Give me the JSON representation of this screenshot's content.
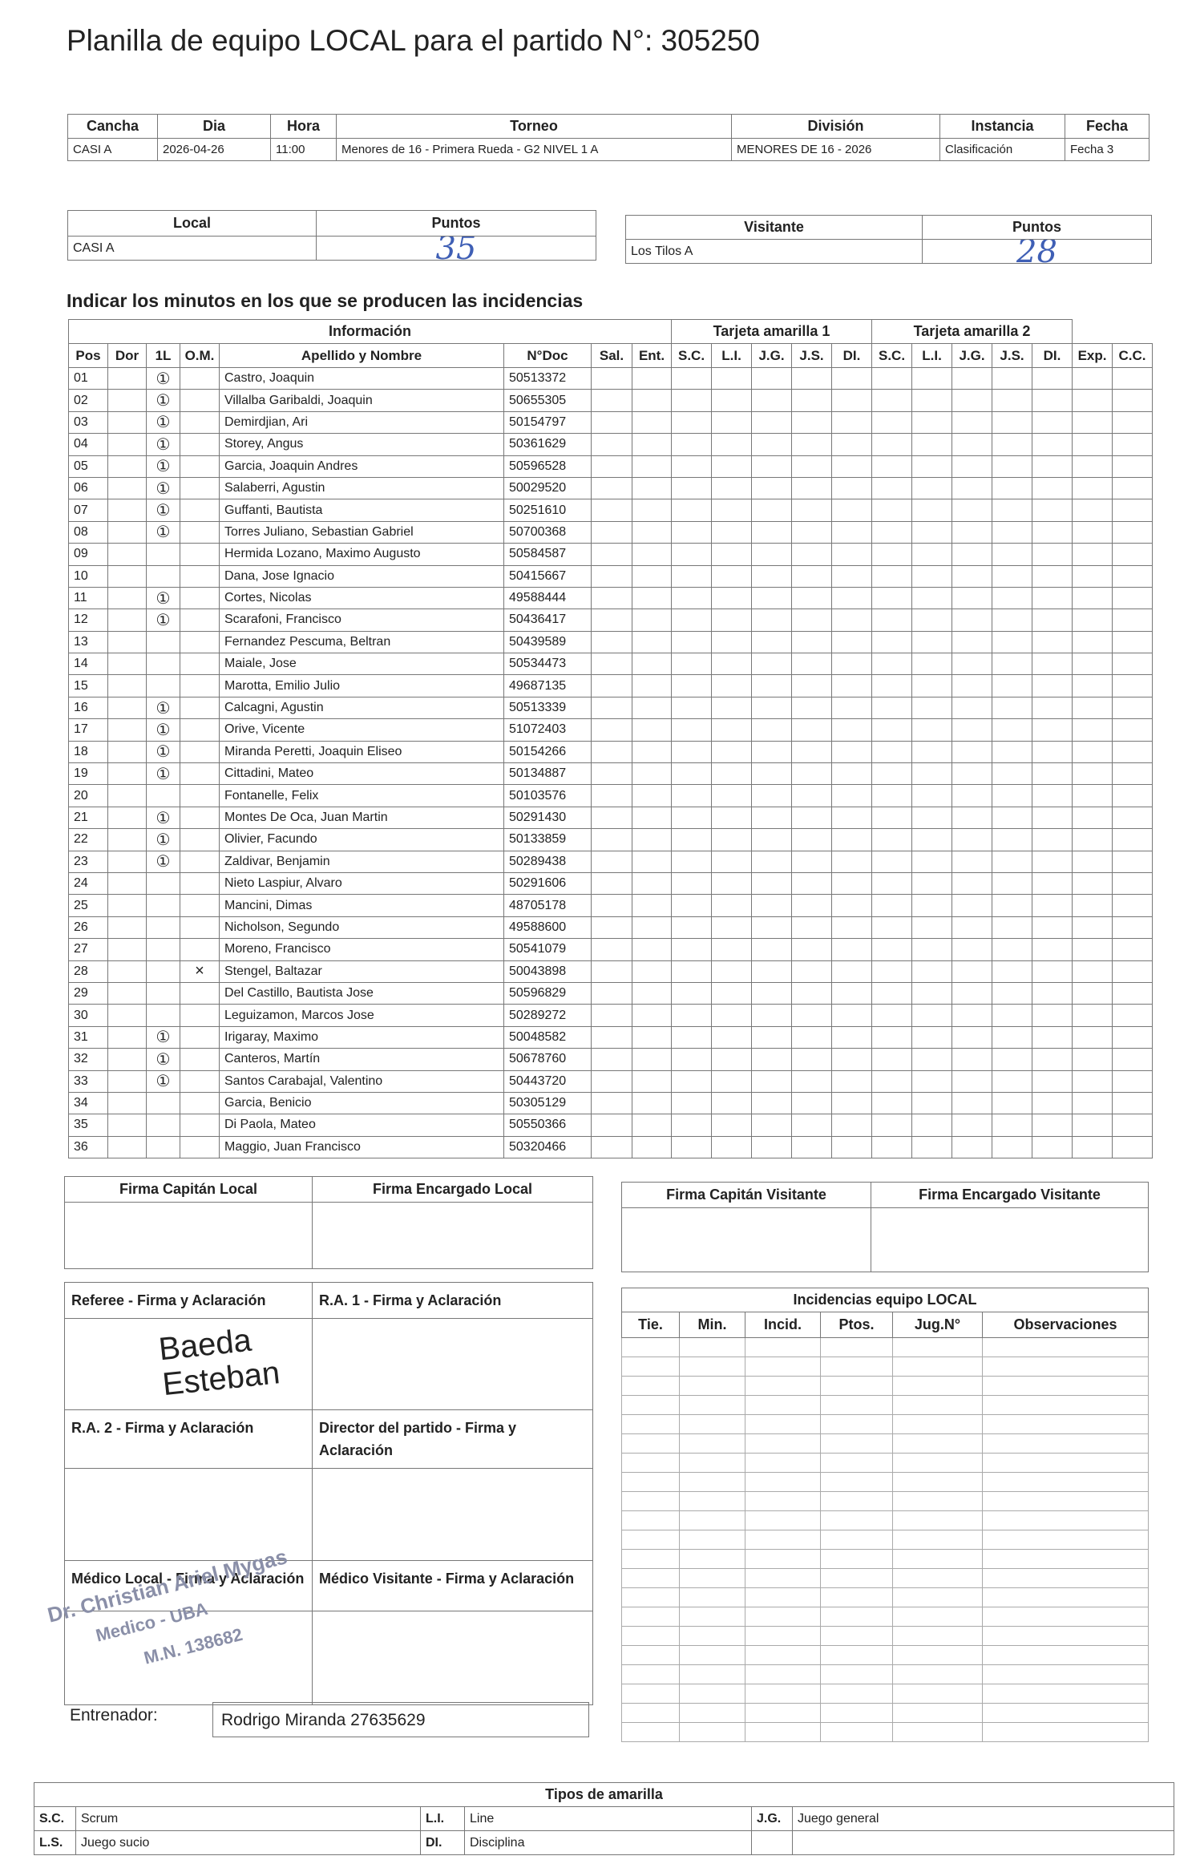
{
  "header": {
    "title": "Planilla de equipo LOCAL para el partido N°: 305250"
  },
  "match": {
    "columns": [
      "Cancha",
      "Dia",
      "Hora",
      "Torneo",
      "División",
      "Instancia",
      "Fecha"
    ],
    "values": [
      "CASI A",
      "2026-04-26",
      "11:00",
      "Menores de 16 - Primera Rueda - G2 NIVEL 1 A",
      "MENORES DE 16 - 2026",
      "Clasificación",
      "Fecha 3"
    ]
  },
  "score": {
    "local_label": "Local",
    "local_points_label": "Puntos",
    "local_team": "CASI A",
    "local_points": "35",
    "visitor_label": "Visitante",
    "visitor_points_label": "Puntos",
    "visitor_team": "Los Tilos A",
    "visitor_points": "28"
  },
  "players": {
    "heading": "Indicar los minutos en los que se producen las incidencias",
    "group_headers": [
      "Información",
      "Tarjeta amarilla 1",
      "Tarjeta amarilla 2"
    ],
    "columns": [
      "Pos",
      "Dor",
      "1L",
      "O.M.",
      "Apellido y Nombre",
      "N°Doc",
      "Sal.",
      "Ent.",
      "S.C.",
      "L.I.",
      "J.G.",
      "J.S.",
      "DI.",
      "S.C.",
      "L.I.",
      "J.G.",
      "J.S.",
      "DI.",
      "Exp.",
      "C.C."
    ],
    "rows": [
      [
        "01",
        null,
        "①",
        null,
        "Castro, Joaquin",
        "50513372"
      ],
      [
        "02",
        null,
        "①",
        null,
        "Villalba Garibaldi, Joaquin",
        "50655305"
      ],
      [
        "03",
        null,
        "①",
        null,
        "Demirdjian, Ari",
        "50154797"
      ],
      [
        "04",
        null,
        "①",
        null,
        "Storey, Angus",
        "50361629"
      ],
      [
        "05",
        null,
        "①",
        null,
        "Garcia, Joaquin Andres",
        "50596528"
      ],
      [
        "06",
        null,
        "①",
        null,
        "Salaberri, Agustin",
        "50029520"
      ],
      [
        "07",
        null,
        "①",
        null,
        "Guffanti, Bautista",
        "50251610"
      ],
      [
        "08",
        null,
        "①",
        null,
        "Torres Juliano, Sebastian Gabriel",
        "50700368"
      ],
      [
        "09",
        null,
        null,
        null,
        "Hermida Lozano, Maximo Augusto",
        "50584587"
      ],
      [
        "10",
        null,
        null,
        null,
        "Dana, Jose Ignacio",
        "50415667"
      ],
      [
        "11",
        null,
        "①",
        null,
        "Cortes, Nicolas",
        "49588444"
      ],
      [
        "12",
        null,
        "①",
        null,
        "Scarafoni, Francisco",
        "50436417"
      ],
      [
        "13",
        null,
        null,
        null,
        "Fernandez Pescuma, Beltran",
        "50439589"
      ],
      [
        "14",
        null,
        null,
        null,
        "Maiale, Jose",
        "50534473"
      ],
      [
        "15",
        null,
        null,
        null,
        "Marotta, Emilio Julio",
        "49687135"
      ],
      [
        "16",
        null,
        "①",
        null,
        "Calcagni, Agustin",
        "50513339"
      ],
      [
        "17",
        null,
        "①",
        null,
        "Orive, Vicente",
        "51072403"
      ],
      [
        "18",
        null,
        "①",
        null,
        "Miranda Peretti, Joaquin Eliseo",
        "50154266"
      ],
      [
        "19",
        null,
        "①",
        null,
        "Cittadini, Mateo",
        "50134887"
      ],
      [
        "20",
        null,
        null,
        null,
        "Fontanelle, Felix",
        "50103576"
      ],
      [
        "21",
        null,
        "①",
        null,
        "Montes De Oca, Juan Martin",
        "50291430"
      ],
      [
        "22",
        null,
        "①",
        null,
        "Olivier, Facundo",
        "50133859"
      ],
      [
        "23",
        null,
        "①",
        null,
        "Zaldivar, Benjamin",
        "50289438"
      ],
      [
        "24",
        null,
        null,
        null,
        "Nieto Laspiur, Alvaro",
        "50291606"
      ],
      [
        "25",
        null,
        null,
        null,
        "Mancini, Dimas",
        "48705178"
      ],
      [
        "26",
        null,
        null,
        null,
        "Nicholson, Segundo",
        "49588600"
      ],
      [
        "27",
        null,
        null,
        null,
        "Moreno, Francisco",
        "50541079"
      ],
      [
        "28",
        null,
        null,
        "×",
        "Stengel, Baltazar",
        "50043898"
      ],
      [
        "29",
        null,
        null,
        null,
        "Del Castillo, Bautista Jose",
        "50596829"
      ],
      [
        "30",
        null,
        null,
        null,
        "Leguizamon, Marcos Jose",
        "50289272"
      ],
      [
        "31",
        null,
        "①",
        null,
        "Irigaray, Maximo",
        "50048582"
      ],
      [
        "32",
        null,
        "①",
        null,
        "Canteros, Martín",
        "50678760"
      ],
      [
        "33",
        null,
        "①",
        null,
        "Santos Carabajal, Valentino",
        "50443720"
      ],
      [
        "34",
        null,
        null,
        null,
        "Garcia, Benicio",
        "50305129"
      ],
      [
        "35",
        null,
        null,
        null,
        "Di Paola, Mateo",
        "50550366"
      ],
      [
        "36",
        null,
        null,
        null,
        "Maggio, Juan Francisco",
        "50320466"
      ]
    ]
  },
  "signatures": {
    "captain_local": "Firma Capitán Local",
    "manager_local": "Firma Encargado Local",
    "captain_visitor": "Firma Capitán Visitante",
    "manager_visitor": "Firma Encargado Visitante"
  },
  "officials": {
    "referee": "Referee - Firma y Aclaración",
    "ra1": "R.A. 1 - Firma y Aclaración",
    "ra2": "R.A. 2 - Firma y Aclaración",
    "director": "Director del partido - Firma y Aclaración",
    "medico_local": "Médico Local - Firma y Aclaración",
    "medico_visitante": "Médico Visitante - Firma y Aclaración",
    "referee_handwriting": "Baeda Esteban",
    "stamp": [
      "Dr. Christian Ariel Mygas",
      "Medico - UBA",
      "M.N. 138682"
    ]
  },
  "incidents": {
    "title": "Incidencias equipo LOCAL",
    "columns": [
      "Tie.",
      "Min.",
      "Incid.",
      "Ptos.",
      "Jug.N°",
      "Observaciones"
    ]
  },
  "coach": {
    "label": "Entrenador:",
    "value": "Rodrigo Miranda 27635629"
  },
  "legend": {
    "title": "Tipos de amarilla",
    "rows": [
      [
        [
          "S.C.",
          "Scrum"
        ],
        [
          "L.I.",
          "Line"
        ],
        [
          "J.G.",
          "Juego general"
        ]
      ],
      [
        [
          "L.S.",
          "Juego sucio"
        ],
        [
          "DI.",
          "Disciplina"
        ]
      ]
    ]
  }
}
